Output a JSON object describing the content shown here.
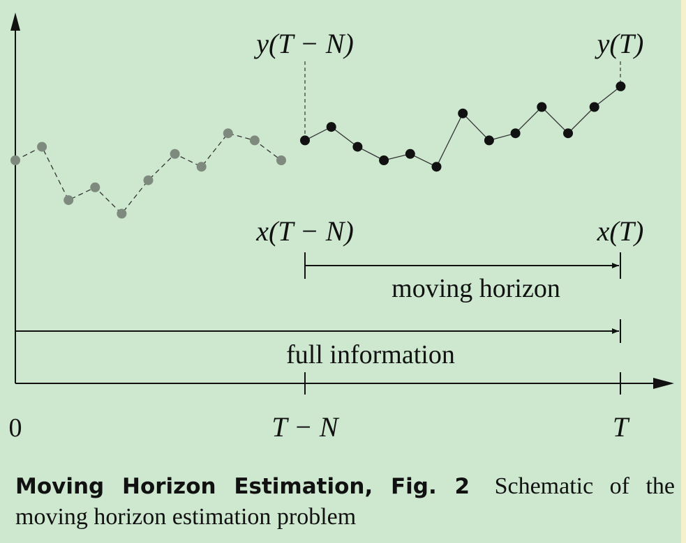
{
  "labels": {
    "y_start": "y(T − N)",
    "y_end": "y(T)",
    "x_start": "x(T − N)",
    "x_end": "x(T)",
    "moving_horizon": "moving horizon",
    "full_information": "full information",
    "tick_zero": "0",
    "tick_t_minus_n": "T − N",
    "tick_t": "T"
  },
  "measurements": {
    "past_values": [
      0.0,
      0.19,
      -0.56,
      -0.38,
      -0.75,
      -0.28,
      0.09,
      -0.09,
      0.38,
      0.28,
      0.0
    ],
    "window_values": [
      0.28,
      0.47,
      0.19,
      0.0,
      0.09,
      -0.09,
      0.66,
      0.28,
      0.38,
      0.75,
      0.38,
      0.75,
      1.04
    ],
    "past_style": "dashed, gray markers",
    "window_style": "solid, black markers"
  },
  "colors": {
    "background": "#cde8cf",
    "past_marker": "#7f8a7f",
    "window_marker": "#111111",
    "ink": "#111111",
    "edge_strip": "#f4f1cc"
  },
  "caption": {
    "label": "Moving Horizon Estimation, Fig. 2",
    "text": "Schematic of the moving horizon estimation problem"
  }
}
